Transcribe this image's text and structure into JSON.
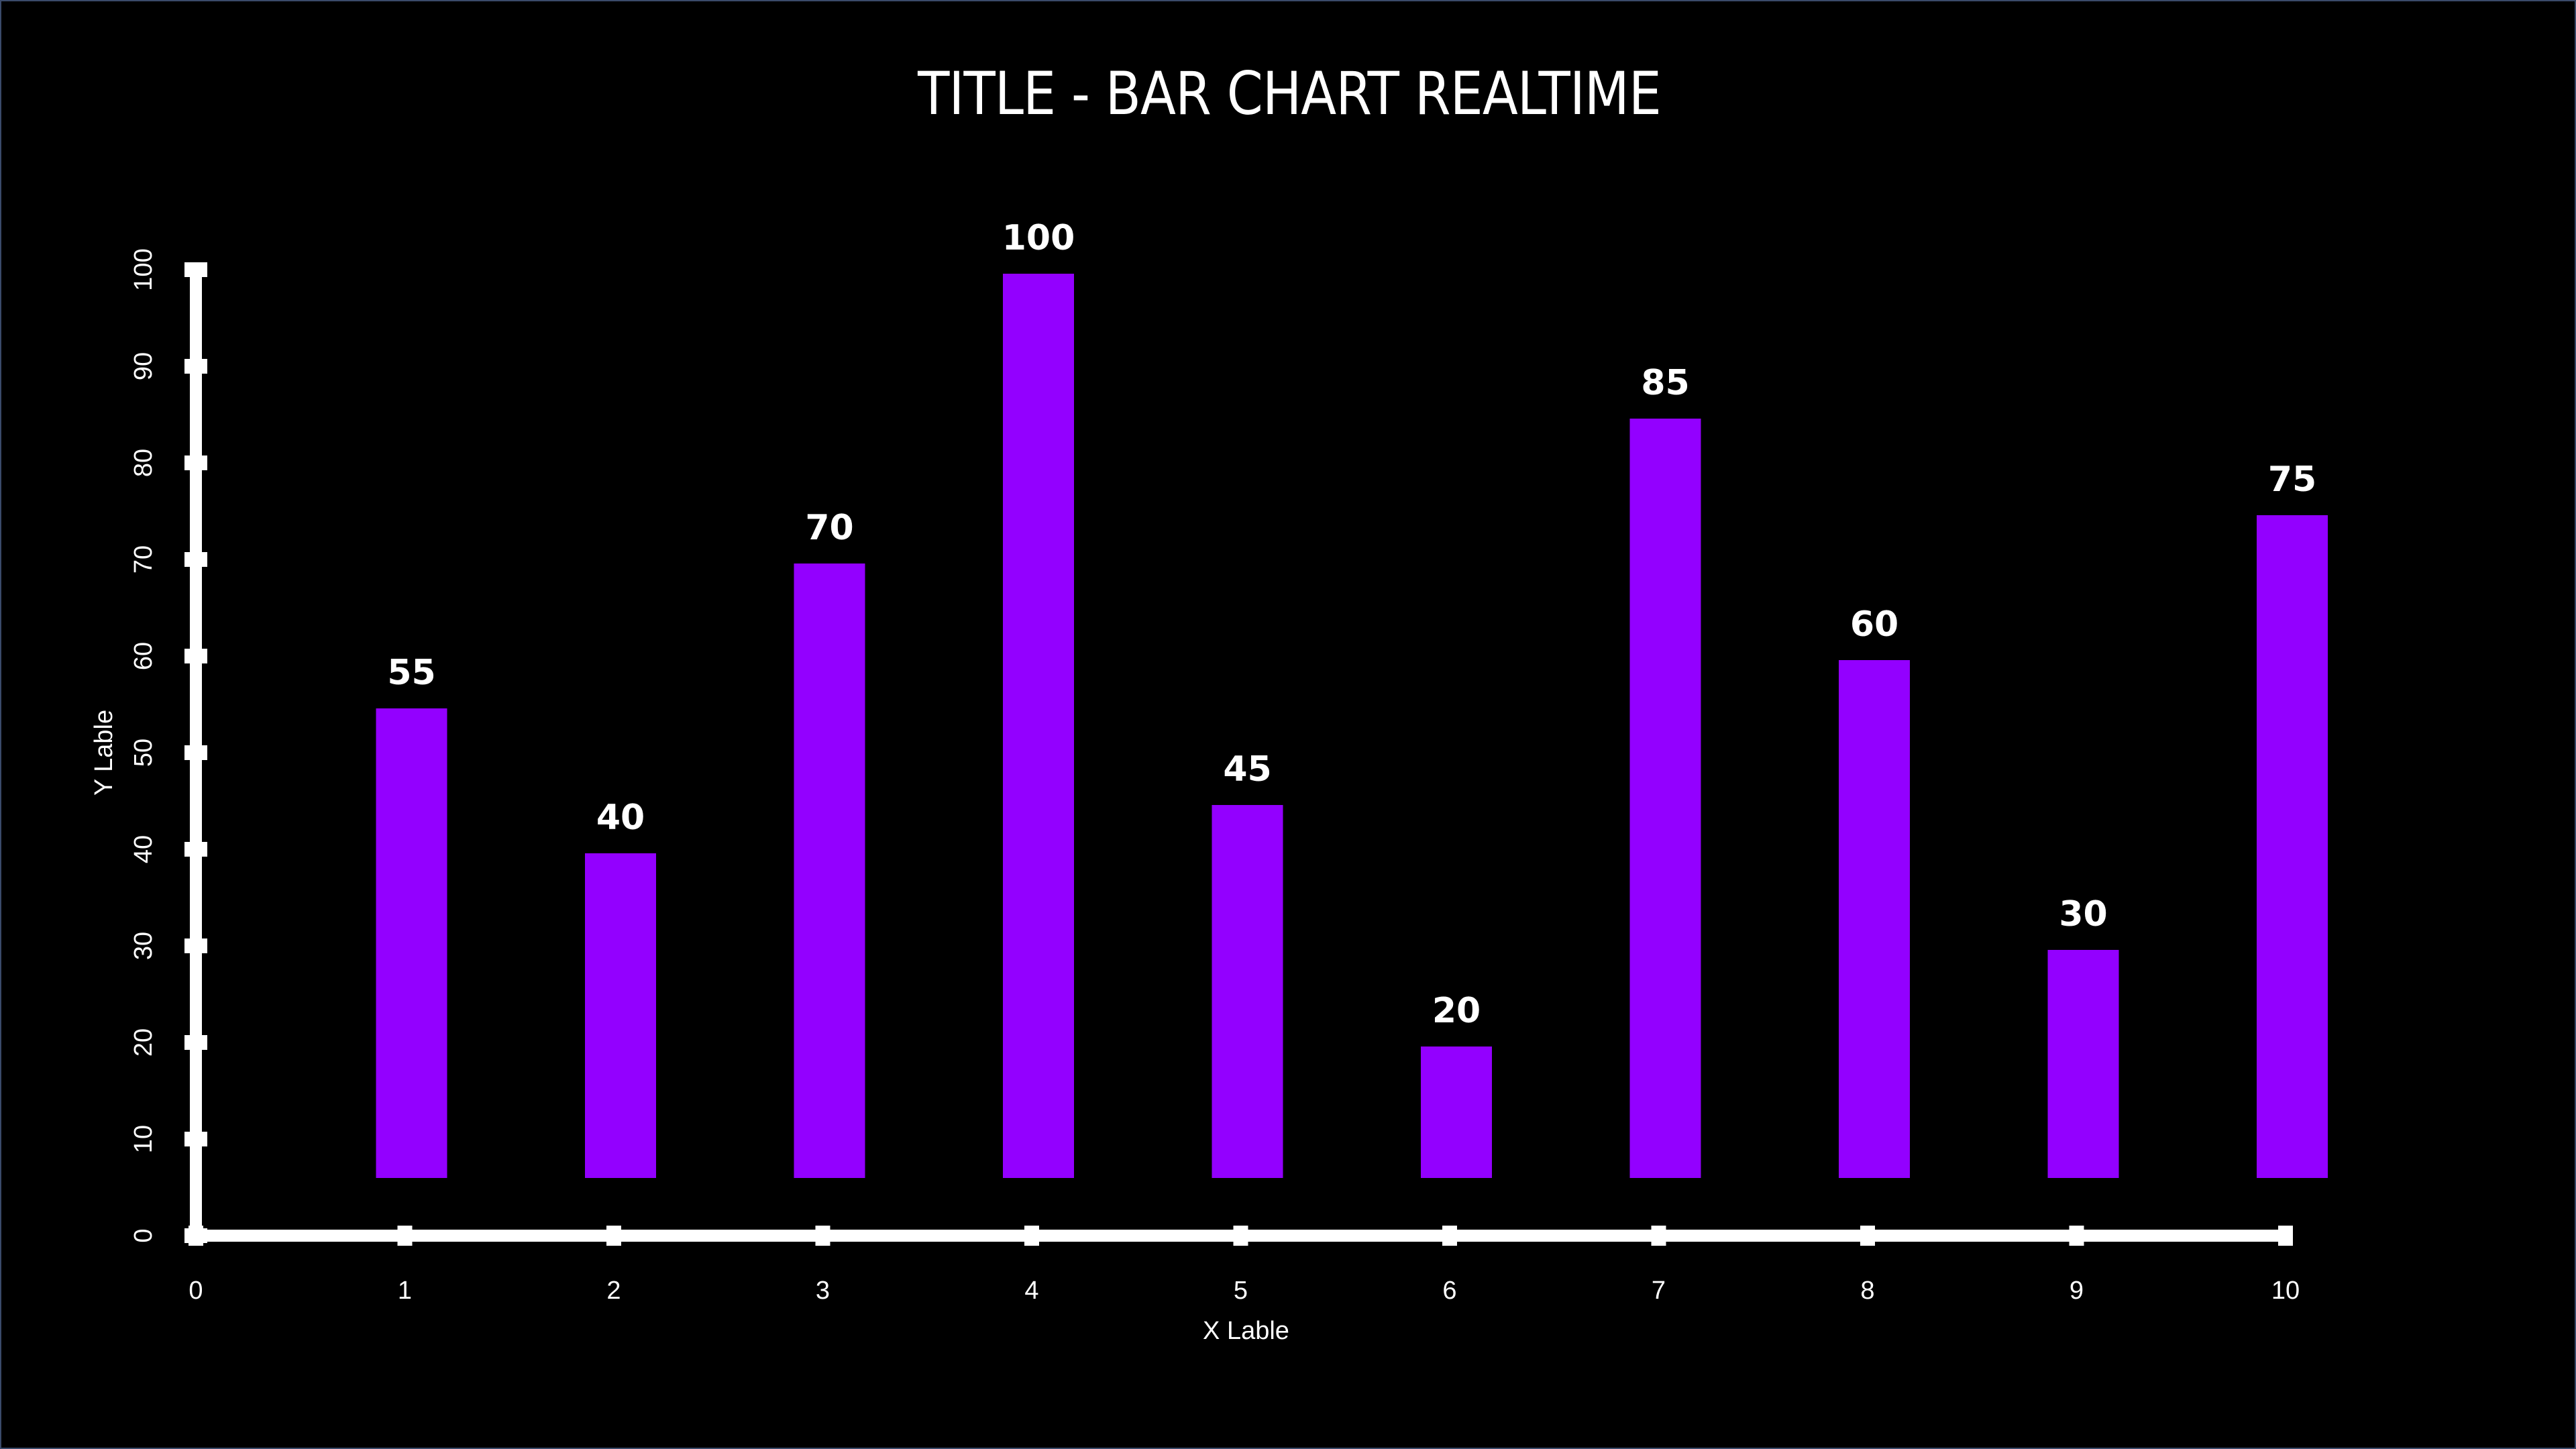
{
  "chart_data": {
    "type": "bar",
    "title": "TITLE - BAR CHART REALTIME",
    "xlabel": "X Lable",
    "ylabel": "Y Lable",
    "categories": [
      1,
      2,
      3,
      4,
      5,
      6,
      7,
      8,
      9,
      10
    ],
    "values": [
      55,
      40,
      70,
      100,
      45,
      20,
      85,
      60,
      30,
      75
    ],
    "xlim": [
      0,
      10
    ],
    "ylim": [
      0,
      100
    ],
    "x_ticks": [
      "0",
      "1",
      "2",
      "3",
      "4",
      "5",
      "6",
      "7",
      "8",
      "9",
      "10"
    ],
    "y_ticks": [
      "0",
      "10",
      "20",
      "30",
      "40",
      "50",
      "60",
      "70",
      "80",
      "90",
      "100"
    ],
    "grid": false,
    "colors": {
      "bar": "#9300ff",
      "axis": "#ffffff",
      "background": "#000000",
      "text": "#ffffff"
    }
  }
}
